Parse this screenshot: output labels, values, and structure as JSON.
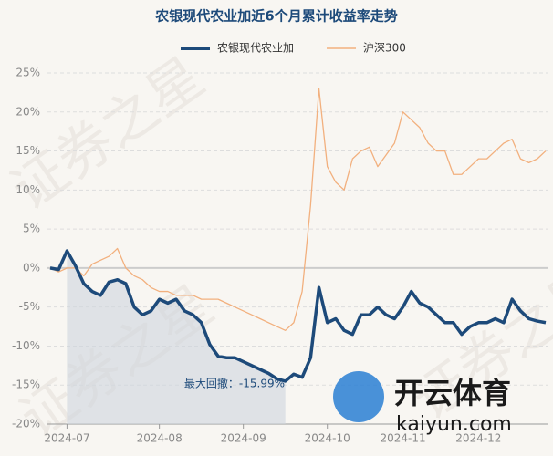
{
  "chart_data": {
    "type": "line",
    "title": "农银现代农业加近6个月累计收益率走势",
    "categories": [
      null,
      null,
      "2024-07",
      null,
      null,
      null,
      null,
      null,
      null,
      null,
      null,
      null,
      null,
      "2024-08",
      null,
      null,
      null,
      null,
      null,
      null,
      null,
      null,
      null,
      "2024-09",
      null,
      null,
      null,
      null,
      null,
      null,
      null,
      null,
      null,
      "2024-10",
      null,
      null,
      null,
      null,
      null,
      null,
      null,
      null,
      "2024-11",
      null,
      null,
      null,
      null,
      null,
      null,
      null,
      null,
      "2024-12",
      null,
      null,
      null,
      null,
      null,
      null,
      null,
      null
    ],
    "series": [
      {
        "name": "农银现代农业加",
        "color": "#1d4a7a",
        "values": [
          0,
          -0.2,
          2.2,
          0.3,
          -2,
          -3,
          -3.5,
          -1.8,
          -1.5,
          -2,
          -5,
          -6,
          -5.5,
          -4,
          -4.5,
          -4,
          -5.5,
          -6,
          -7,
          -9.8,
          -11.3,
          -11.5,
          -11.5,
          -12,
          -12.5,
          -13,
          -13.5,
          -14.2,
          -14.5,
          -13.6,
          -14,
          -11.5,
          -2.5,
          -7,
          -6.5,
          -8,
          -8.5,
          -6,
          -6,
          -5,
          -6,
          -6.5,
          -5,
          -3,
          -4.5,
          -5,
          -6,
          -7,
          -7,
          -8.5,
          -7.5,
          -7,
          -7,
          -6.5,
          -7,
          -4,
          -5.5,
          -6.5,
          -6.8,
          -7
        ]
      },
      {
        "name": "沪深300",
        "color": "#f2b07e",
        "values": [
          0,
          -0.5,
          0,
          0,
          -1,
          0.5,
          1,
          1.5,
          2.5,
          0,
          -1,
          -1.5,
          -2.5,
          -3,
          -3,
          -3.5,
          -3.5,
          -3.5,
          -4,
          -4,
          -4,
          -4.5,
          -5,
          -5.5,
          -6,
          -6.5,
          -7,
          -7.5,
          -8,
          -7,
          -3,
          8,
          23,
          13,
          11,
          10,
          14,
          15,
          15.5,
          13,
          14.5,
          16,
          20,
          19,
          18,
          16,
          15,
          15,
          12,
          12,
          13,
          14,
          14,
          15,
          16,
          16.5,
          14,
          13.5,
          14,
          15
        ]
      }
    ],
    "ylim": [
      -20,
      25
    ],
    "yticks": [
      {
        "value": -20,
        "label": "-20%"
      },
      {
        "value": -15,
        "label": "-15%"
      },
      {
        "value": -10,
        "label": "-10%"
      },
      {
        "value": -5,
        "label": "-5%"
      },
      {
        "value": 0,
        "label": "0%"
      },
      {
        "value": 5,
        "label": "5%"
      },
      {
        "value": 10,
        "label": "10%"
      },
      {
        "value": 15,
        "label": "15%"
      },
      {
        "value": 20,
        "label": "20%"
      },
      {
        "value": 25,
        "label": "25%"
      }
    ],
    "grid": true,
    "legend": "top",
    "annotation": "最大回撤：-15.99%",
    "watermark": "证券之星",
    "logo_text": "开云体育",
    "logo_url": "kaiyun.com"
  }
}
